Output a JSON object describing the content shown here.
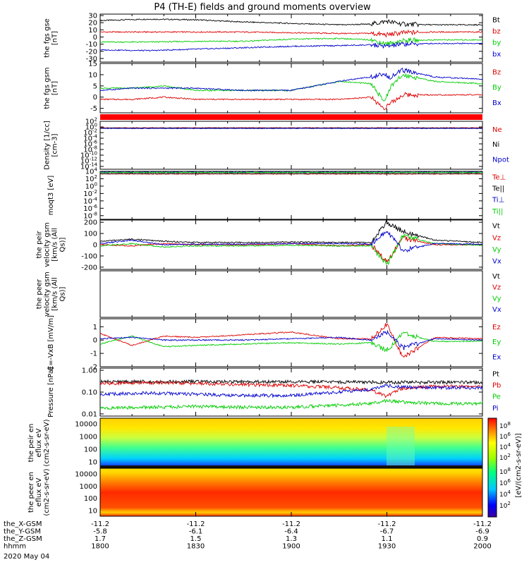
{
  "header": {
    "title": "P4 (TH-E) fields and ground moments overview"
  },
  "time_axis": {
    "tick_times": [
      "1800",
      "1830",
      "1900",
      "1930",
      "2000"
    ],
    "rows": [
      {
        "label": "the_X-GSM",
        "values": [
          "-11.2",
          "-11.2",
          "-11.2",
          "-11.2",
          "-11.2"
        ]
      },
      {
        "label": "the_Y-GSM",
        "values": [
          "-5.8",
          "-6.1",
          "-6.4",
          "-6.7",
          "-6.9"
        ]
      },
      {
        "label": "the_Z-GSM",
        "values": [
          "1.7",
          "1.5",
          "1.3",
          "1.1",
          "0.9"
        ]
      },
      {
        "label": "hhmm",
        "values": [
          "1800",
          "1830",
          "1900",
          "1930",
          "2000"
        ]
      }
    ],
    "date": "2020 May 04"
  },
  "colorbar": {
    "label": "[eV/(cm2-s-sr-eV)]",
    "ticks": [
      "10^8",
      "10^6",
      "10^4",
      "10^2"
    ],
    "ticks_lower": [
      "10^8",
      "10^6",
      "10^4",
      "10^2"
    ]
  },
  "chart_data": [
    {
      "type": "line",
      "panel": "fgs-gse",
      "ylabel": "the fgs gse [nT]",
      "ylim": [
        -35,
        32
      ],
      "yticks": [
        "30",
        "20",
        "10",
        "0",
        "-10",
        "-20",
        "-30"
      ],
      "legend": [
        {
          "name": "Bt",
          "color": "#000000"
        },
        {
          "name": "bz",
          "color": "#dd0000"
        },
        {
          "name": "by",
          "color": "#00cc00"
        },
        {
          "name": "bx",
          "color": "#0000cc"
        }
      ],
      "series": [
        {
          "name": "Bt",
          "color": "#000000",
          "x": [
            1800,
            1815,
            1830,
            1845,
            1900,
            1915,
            1925,
            1930,
            1935,
            1945,
            2000
          ],
          "values": [
            23,
            25,
            24,
            21,
            19,
            17,
            18,
            22,
            18,
            17,
            17
          ]
        },
        {
          "name": "bz",
          "color": "#dd0000",
          "x": [
            1800,
            1815,
            1830,
            1845,
            1900,
            1915,
            1925,
            1930,
            1935,
            1945,
            2000
          ],
          "values": [
            7,
            7,
            7,
            7,
            6,
            5,
            5,
            3,
            6,
            7,
            7
          ]
        },
        {
          "name": "by",
          "color": "#00cc00",
          "x": [
            1800,
            1815,
            1830,
            1845,
            1900,
            1915,
            1925,
            1930,
            1935,
            1945,
            2000
          ],
          "values": [
            -7,
            -7,
            -6,
            -6,
            -3,
            -2,
            -4,
            -10,
            -5,
            -4,
            -4
          ]
        },
        {
          "name": "bx",
          "color": "#0000cc",
          "x": [
            1800,
            1815,
            1830,
            1845,
            1900,
            1915,
            1925,
            1930,
            1935,
            1945,
            2000
          ],
          "values": [
            -18,
            -19,
            -17,
            -15,
            -13,
            -12,
            -11,
            -13,
            -10,
            -9,
            -9
          ]
        }
      ]
    },
    {
      "type": "line",
      "panel": "fgs-gsm",
      "ylabel": "the fgs gsm [nT]",
      "ylim": [
        -7,
        15
      ],
      "yticks": [
        "15",
        "10",
        "5",
        "0",
        "-5"
      ],
      "legend": [
        {
          "name": "Bz",
          "color": "#dd0000"
        },
        {
          "name": "By",
          "color": "#00cc00"
        },
        {
          "name": "Bx",
          "color": "#0000cc"
        }
      ],
      "series": [
        {
          "name": "Bz",
          "color": "#dd0000",
          "x": [
            1800,
            1810,
            1820,
            1830,
            1845,
            1900,
            1915,
            1925,
            1929,
            1931,
            1935,
            1945,
            2000
          ],
          "values": [
            -1,
            -1,
            0,
            -1,
            -1,
            -1,
            -1,
            0,
            -5,
            -3,
            1,
            1,
            1
          ]
        },
        {
          "name": "By",
          "color": "#00cc00",
          "x": [
            1800,
            1810,
            1820,
            1830,
            1845,
            1900,
            1915,
            1925,
            1929,
            1931,
            1935,
            1945,
            2000
          ],
          "values": [
            4,
            4,
            5,
            3,
            3,
            3,
            7,
            6,
            -2,
            4,
            10,
            7,
            6
          ]
        },
        {
          "name": "Bx",
          "color": "#0000cc",
          "x": [
            1800,
            1810,
            1820,
            1830,
            1845,
            1900,
            1915,
            1925,
            1929,
            1931,
            1935,
            1945,
            2000
          ],
          "values": [
            3,
            4,
            4,
            4,
            3,
            3,
            7,
            9,
            10,
            9,
            12,
            9,
            8
          ]
        }
      ]
    },
    {
      "type": "line",
      "panel": "density",
      "ylabel": "Density [1/cc] [cm-3]",
      "ylim_log": [
        -15,
        2
      ],
      "yticks": [
        "10^2",
        "10^0",
        "10^-2",
        "10^-4",
        "10^-6",
        "10^-8",
        "10^-10",
        "10^-12",
        "10^-14"
      ],
      "legend": [
        {
          "name": "Ne",
          "color": "#dd0000"
        },
        {
          "name": "Ni",
          "color": "#000000"
        },
        {
          "name": "Npot",
          "color": "#0000cc"
        }
      ],
      "series": [
        {
          "name": "Ne",
          "color": "#dd0000",
          "x": [
            1800,
            2000
          ],
          "values": [
            0.5,
            0.5
          ]
        },
        {
          "name": "Ni",
          "color": "#000000",
          "x": [
            1800,
            2000
          ],
          "values": [
            0.4,
            0.4
          ]
        },
        {
          "name": "Npot",
          "color": "#0000cc",
          "x": [
            1800,
            2000
          ],
          "values": [
            0.3,
            0.3
          ]
        }
      ]
    },
    {
      "type": "line",
      "panel": "temperature",
      "ylabel": "moqt3 [eV]",
      "ylim_log": [
        -9,
        4
      ],
      "yticks": [
        "10^4",
        "10^2",
        "10^0",
        "10^-2",
        "10^-4",
        "10^-6",
        "10^-8"
      ],
      "legend": [
        {
          "name": "Te⊥",
          "color": "#dd0000"
        },
        {
          "name": "Te||",
          "color": "#000000"
        },
        {
          "name": "Ti⊥",
          "color": "#0000cc"
        },
        {
          "name": "Ti||",
          "color": "#00cc00"
        }
      ],
      "series": [
        {
          "name": "Te⊥",
          "color": "#dd0000",
          "x": [
            1800,
            2000
          ],
          "values": [
            2000,
            2000
          ]
        },
        {
          "name": "Te||",
          "color": "#000000",
          "x": [
            1800,
            2000
          ],
          "values": [
            2500,
            2500
          ]
        },
        {
          "name": "Ti⊥",
          "color": "#0000cc",
          "x": [
            1800,
            2000
          ],
          "values": [
            6000,
            6000
          ]
        },
        {
          "name": "Ti||",
          "color": "#00cc00",
          "x": [
            1800,
            2000
          ],
          "values": [
            5000,
            5000
          ]
        }
      ]
    },
    {
      "type": "line",
      "panel": "peir-velocity",
      "ylabel": "the peir velocity gsm [km/s (All Qs)]",
      "ylim": [
        -220,
        220
      ],
      "yticks": [
        "200",
        "100",
        "0",
        "-100",
        "-200"
      ],
      "legend": [
        {
          "name": "Vt",
          "color": "#000000"
        },
        {
          "name": "Vz",
          "color": "#dd0000"
        },
        {
          "name": "Vy",
          "color": "#00cc00"
        },
        {
          "name": "Vx",
          "color": "#0000cc"
        }
      ],
      "series": [
        {
          "name": "Vt",
          "color": "#000000",
          "x": [
            1800,
            1810,
            1820,
            1830,
            1845,
            1900,
            1915,
            1925,
            1930,
            1935,
            1945,
            2000
          ],
          "values": [
            30,
            50,
            30,
            20,
            20,
            25,
            20,
            20,
            200,
            120,
            40,
            20
          ]
        },
        {
          "name": "Vz",
          "color": "#dd0000",
          "x": [
            1800,
            1810,
            1820,
            1830,
            1845,
            1900,
            1915,
            1925,
            1930,
            1935,
            1945,
            2000
          ],
          "values": [
            0,
            -10,
            10,
            0,
            0,
            10,
            -10,
            0,
            -150,
            60,
            0,
            0
          ]
        },
        {
          "name": "Vy",
          "color": "#00cc00",
          "x": [
            1800,
            1810,
            1820,
            1830,
            1845,
            1900,
            1915,
            1925,
            1930,
            1935,
            1945,
            2000
          ],
          "values": [
            -10,
            10,
            -20,
            -10,
            -10,
            -5,
            -10,
            -10,
            -180,
            80,
            10,
            -5
          ]
        },
        {
          "name": "Vx",
          "color": "#0000cc",
          "x": [
            1800,
            1810,
            1820,
            1830,
            1845,
            1900,
            1915,
            1925,
            1930,
            1935,
            1945,
            2000
          ],
          "values": [
            10,
            40,
            0,
            5,
            5,
            10,
            10,
            5,
            120,
            -50,
            10,
            5
          ]
        }
      ]
    },
    {
      "type": "line",
      "panel": "peer-velocity",
      "ylabel": "the peer velocity gsm [km/s (All Qs)]",
      "legend": [
        {
          "name": "Vt",
          "color": "#000000"
        },
        {
          "name": "Vz",
          "color": "#dd0000"
        },
        {
          "name": "Vy",
          "color": "#00cc00"
        },
        {
          "name": "Vx",
          "color": "#0000cc"
        }
      ],
      "series": []
    },
    {
      "type": "line",
      "panel": "e-field",
      "ylabel": "E=-VxB [mV/m]",
      "ylim": [
        -2,
        1.6
      ],
      "yticks": [
        "1",
        "0",
        "-1",
        "-2"
      ],
      "legend": [
        {
          "name": "Ez",
          "color": "#dd0000"
        },
        {
          "name": "Ey",
          "color": "#00cc00"
        },
        {
          "name": "Ex",
          "color": "#0000cc"
        }
      ],
      "series": [
        {
          "name": "Ez",
          "color": "#dd0000",
          "x": [
            1800,
            1810,
            1820,
            1830,
            1845,
            1900,
            1915,
            1925,
            1930,
            1935,
            1945,
            2000
          ],
          "values": [
            0.5,
            -0.4,
            0.3,
            0.2,
            0.4,
            0.6,
            0.1,
            0.1,
            1.2,
            -1.3,
            0.2,
            0.1
          ]
        },
        {
          "name": "Ey",
          "color": "#00cc00",
          "x": [
            1800,
            1810,
            1820,
            1830,
            1845,
            1900,
            1915,
            1925,
            1930,
            1935,
            1945,
            2000
          ],
          "values": [
            -0.3,
            0.3,
            -0.5,
            -0.4,
            -0.3,
            -0.2,
            -0.3,
            -0.2,
            -0.8,
            0.5,
            -0.1,
            -0.1
          ]
        },
        {
          "name": "Ex",
          "color": "#0000cc",
          "x": [
            1800,
            1810,
            1820,
            1830,
            1845,
            1900,
            1915,
            1925,
            1930,
            1935,
            1945,
            2000
          ],
          "values": [
            0.1,
            0.2,
            0.0,
            0.0,
            0.0,
            0.1,
            0.2,
            0.0,
            0.6,
            -0.6,
            0.1,
            0.0
          ]
        }
      ]
    },
    {
      "type": "line",
      "panel": "pressure",
      "ylabel": "Pressure [nPa]",
      "ylim_log": [
        -2.1,
        0.1
      ],
      "yticks": [
        "1.00",
        "0.10",
        "0.01"
      ],
      "legend": [
        {
          "name": "Pt",
          "color": "#000000"
        },
        {
          "name": "Pb",
          "color": "#dd0000"
        },
        {
          "name": "Pe",
          "color": "#00cc00"
        },
        {
          "name": "Pi",
          "color": "#0000cc"
        }
      ],
      "series": [
        {
          "name": "Pt",
          "color": "#000000",
          "x": [
            1800,
            1830,
            1900,
            1930,
            2000
          ],
          "values": [
            0.3,
            0.3,
            0.3,
            0.28,
            0.28
          ]
        },
        {
          "name": "Pb",
          "color": "#dd0000",
          "x": [
            1800,
            1815,
            1830,
            1845,
            1900,
            1915,
            1925,
            1930,
            1935,
            1945,
            2000
          ],
          "values": [
            0.25,
            0.27,
            0.25,
            0.22,
            0.2,
            0.16,
            0.12,
            0.06,
            0.15,
            0.18,
            0.18
          ]
        },
        {
          "name": "Pe",
          "color": "#00cc00",
          "x": [
            1800,
            1815,
            1830,
            1845,
            1900,
            1915,
            1925,
            1930,
            1935,
            1945,
            2000
          ],
          "values": [
            0.018,
            0.02,
            0.022,
            0.02,
            0.02,
            0.025,
            0.03,
            0.04,
            0.035,
            0.03,
            0.03
          ]
        },
        {
          "name": "Pi",
          "color": "#0000cc",
          "x": [
            1800,
            1815,
            1830,
            1845,
            1900,
            1915,
            1925,
            1930,
            1935,
            1945,
            2000
          ],
          "values": [
            0.08,
            0.09,
            0.08,
            0.07,
            0.07,
            0.1,
            0.13,
            0.2,
            0.17,
            0.16,
            0.16
          ]
        }
      ]
    },
    {
      "type": "heatmap",
      "panel": "peir-energy",
      "ylabel": "the peir en eflux eV (cm2-s-sr-eV)",
      "yticks": [
        "10000",
        "1000",
        "100",
        "10"
      ],
      "description_colorscale": "log"
    },
    {
      "type": "heatmap",
      "panel": "peer-energy",
      "ylabel": "the peer en eflux eV (cm2-s-sr-eV)",
      "yticks": [
        "10000",
        "1000",
        "100",
        "10"
      ],
      "description_colorscale": "log"
    }
  ]
}
